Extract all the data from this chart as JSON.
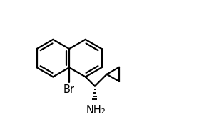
{
  "bg_color": "#ffffff",
  "line_color": "#000000",
  "line_width": 1.6,
  "text_color": "#000000",
  "font_size": 10.5,
  "bl": 27
}
